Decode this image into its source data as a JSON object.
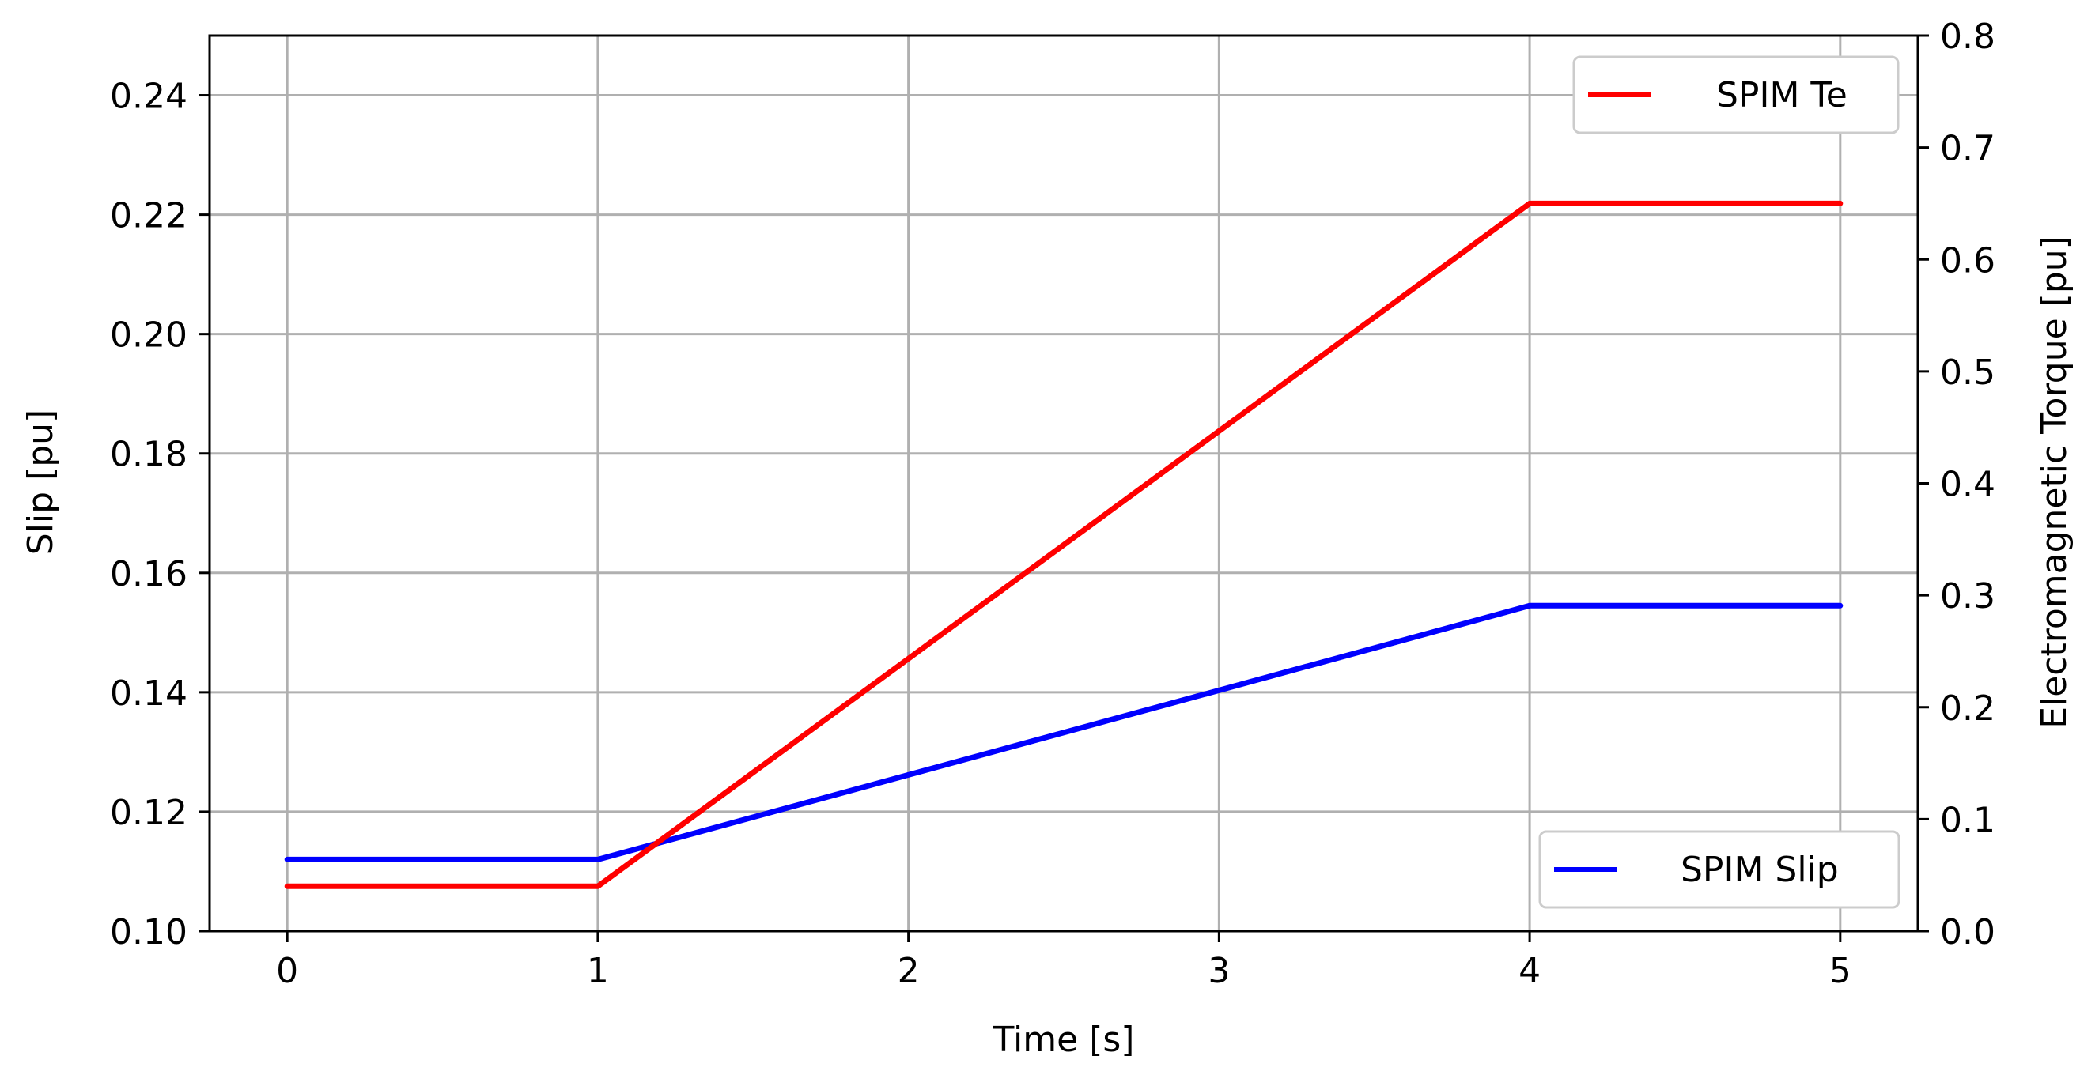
{
  "chart_data": {
    "type": "line",
    "title": "",
    "xlabel": "Time [s]",
    "ylabel_left": "Slip [pu]",
    "ylabel_right": "Electromagnetic Torque [pu]",
    "xlim": [
      -0.25,
      5.25
    ],
    "ylim_left": [
      0.1,
      0.25
    ],
    "ylim_right": [
      0.0,
      0.8
    ],
    "xticks": [
      0,
      1,
      2,
      3,
      4,
      5
    ],
    "xtick_labels": [
      "0",
      "1",
      "2",
      "3",
      "4",
      "5"
    ],
    "yticks_left": [
      0.1,
      0.12,
      0.14,
      0.16,
      0.18,
      0.2,
      0.22,
      0.24
    ],
    "ytick_labels_left": [
      "0.10",
      "0.12",
      "0.14",
      "0.16",
      "0.18",
      "0.20",
      "0.22",
      "0.24"
    ],
    "yticks_right": [
      0.0,
      0.1,
      0.2,
      0.3,
      0.4,
      0.5,
      0.6,
      0.7,
      0.8
    ],
    "ytick_labels_right": [
      "0.0",
      "0.1",
      "0.2",
      "0.3",
      "0.4",
      "0.5",
      "0.6",
      "0.7",
      "0.8"
    ],
    "grid": true,
    "series": [
      {
        "name": "SPIM Slip",
        "axis": "left",
        "color": "#0000ff",
        "x": [
          0,
          1,
          4,
          5
        ],
        "y": [
          0.112,
          0.112,
          0.1545,
          0.1545
        ],
        "legend_position": "lower-right"
      },
      {
        "name": "SPIM Te",
        "axis": "right",
        "color": "#ff0000",
        "x": [
          0,
          1,
          4,
          5
        ],
        "y": [
          0.04,
          0.04,
          0.65,
          0.65
        ],
        "legend_position": "upper-right"
      }
    ]
  }
}
